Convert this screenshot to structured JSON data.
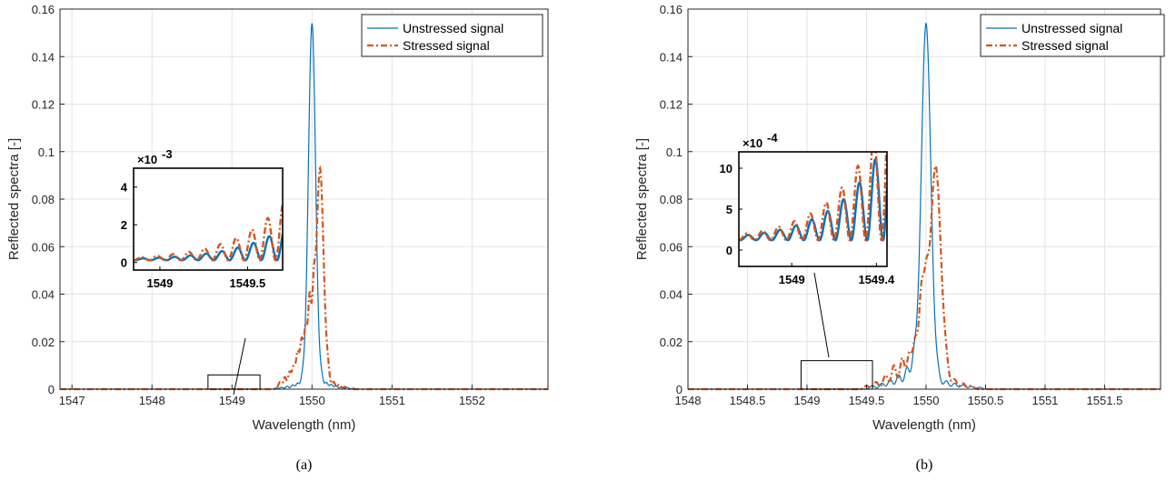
{
  "colors": {
    "unstressed": "#0072BD",
    "stressed": "#D95319",
    "axis": "#262626",
    "grid": "#e3e3e3"
  },
  "chart_data": [
    {
      "panel": "a",
      "caption": "(a)",
      "type": "line",
      "xlabel": "Wavelength (nm)",
      "ylabel": "Reflected spectra [-]",
      "xlim": [
        1546.85,
        1552.95
      ],
      "ylim": [
        0,
        0.16
      ],
      "xticks": [
        1547,
        1548,
        1549,
        1550,
        1551,
        1552
      ],
      "xtick_labels": [
        "1547",
        "1548",
        "1549",
        "1550",
        "1551",
        "1552"
      ],
      "yticks": [
        0,
        0.02,
        0.04,
        0.06,
        0.08,
        0.1,
        0.12,
        0.14,
        0.16
      ],
      "ytick_labels": [
        "0",
        "0.02",
        "0.04",
        "0.06",
        "0.08",
        "0.1",
        "0.12",
        "0.14",
        "0.16"
      ],
      "grid": true,
      "legend_position": "top-right",
      "series": [
        {
          "name": "Unstressed signal",
          "style": "solid",
          "center": 1550.0,
          "peak": 0.154,
          "main_width": 0.045,
          "side_lobes": [
            [
              1549.55,
              0.0005
            ],
            [
              1549.62,
              0.0008
            ],
            [
              1549.69,
              0.0012
            ],
            [
              1549.76,
              0.0018
            ],
            [
              1549.82,
              0.0025
            ],
            [
              1549.88,
              0.004
            ],
            [
              1550.12,
              0.004
            ],
            [
              1550.18,
              0.0028
            ],
            [
              1550.24,
              0.002
            ],
            [
              1550.3,
              0.0014
            ],
            [
              1550.37,
              0.001
            ],
            [
              1550.44,
              0.0007
            ],
            [
              1550.52,
              0.0004
            ]
          ]
        },
        {
          "name": "Stressed signal",
          "style": "dashdot",
          "center": 1550.1,
          "peak": 0.093,
          "main_width": 0.045,
          "side_lobes": [
            [
              1549.6,
              0.003
            ],
            [
              1549.66,
              0.005
            ],
            [
              1549.72,
              0.007
            ],
            [
              1549.77,
              0.009
            ],
            [
              1549.82,
              0.015
            ],
            [
              1549.87,
              0.02
            ],
            [
              1549.92,
              0.025
            ],
            [
              1549.97,
              0.037
            ],
            [
              1550.02,
              0.029
            ],
            [
              1550.2,
              0.006
            ],
            [
              1550.27,
              0.003
            ],
            [
              1550.34,
              0.002
            ],
            [
              1550.41,
              0.001
            ]
          ]
        }
      ],
      "inset": {
        "exponent_label": "×10",
        "exponent_power": "-3",
        "xlim": [
          1548.85,
          1549.7
        ],
        "ylim": [
          -0.4,
          5
        ],
        "xticks": [
          1549,
          1549.5
        ],
        "xtick_labels": [
          "1549",
          "1549.5"
        ],
        "yticks": [
          0,
          2,
          4
        ],
        "ytick_labels": [
          "0",
          "2",
          "4"
        ],
        "zoom_xlim": [
          1548.7,
          1549.35
        ],
        "zoom_ylim": [
          0,
          0.006
        ]
      }
    },
    {
      "panel": "b",
      "caption": "(b)",
      "type": "line",
      "xlabel": "Wavelength (nm)",
      "ylabel": "Reflected spectra [-]",
      "xlim": [
        1548.0,
        1551.97
      ],
      "ylim": [
        0,
        0.16
      ],
      "xticks": [
        1548,
        1548.5,
        1549,
        1549.5,
        1550,
        1550.5,
        1551,
        1551.5
      ],
      "xtick_labels": [
        "1548",
        "1548.5",
        "1549",
        "1549.5",
        "1550",
        "1550.5",
        "1551",
        "1551.5"
      ],
      "yticks": [
        0,
        0.02,
        0.04,
        0.06,
        0.08,
        0.1,
        0.12,
        0.14,
        0.16
      ],
      "ytick_labels": [
        "0",
        "0.02",
        "0.04",
        "0.06",
        "0.08",
        "0.1",
        "0.12",
        "0.14",
        "0.16"
      ],
      "grid": true,
      "legend_position": "top-right",
      "series": [
        {
          "name": "Unstressed signal",
          "style": "solid",
          "center": 1550.0,
          "peak": 0.154,
          "main_width": 0.04,
          "side_lobes": [
            [
              1549.55,
              0.0015
            ],
            [
              1549.63,
              0.0025
            ],
            [
              1549.7,
              0.004
            ],
            [
              1549.77,
              0.006
            ],
            [
              1549.84,
              0.009
            ],
            [
              1549.9,
              0.012
            ],
            [
              1550.1,
              0.005
            ],
            [
              1550.17,
              0.0035
            ],
            [
              1550.24,
              0.0025
            ],
            [
              1550.31,
              0.0018
            ],
            [
              1550.38,
              0.0012
            ],
            [
              1550.45,
              0.0008
            ]
          ]
        },
        {
          "name": "Stressed signal",
          "style": "dashdot",
          "center": 1550.08,
          "peak": 0.094,
          "main_width": 0.045,
          "side_lobes": [
            [
              1549.5,
              0.0015
            ],
            [
              1549.58,
              0.003
            ],
            [
              1549.66,
              0.006
            ],
            [
              1549.73,
              0.01
            ],
            [
              1549.8,
              0.013
            ],
            [
              1549.86,
              0.015
            ],
            [
              1549.91,
              0.02
            ],
            [
              1549.96,
              0.037
            ],
            [
              1550.0,
              0.03
            ],
            [
              1550.17,
              0.006
            ],
            [
              1550.24,
              0.004
            ],
            [
              1550.31,
              0.0025
            ],
            [
              1550.38,
              0.0015
            ]
          ]
        }
      ],
      "inset": {
        "exponent_label": "×10",
        "exponent_power": "-4",
        "xlim": [
          1548.75,
          1549.45
        ],
        "ylim": [
          -2,
          12
        ],
        "xticks": [
          1549,
          1549.4
        ],
        "xtick_labels": [
          "1549",
          "1549.4"
        ],
        "yticks": [
          0,
          5,
          10
        ],
        "ytick_labels": [
          "0",
          "5",
          "10"
        ],
        "zoom_xlim": [
          1548.95,
          1549.55
        ],
        "zoom_ylim": [
          0,
          0.012
        ]
      }
    }
  ]
}
